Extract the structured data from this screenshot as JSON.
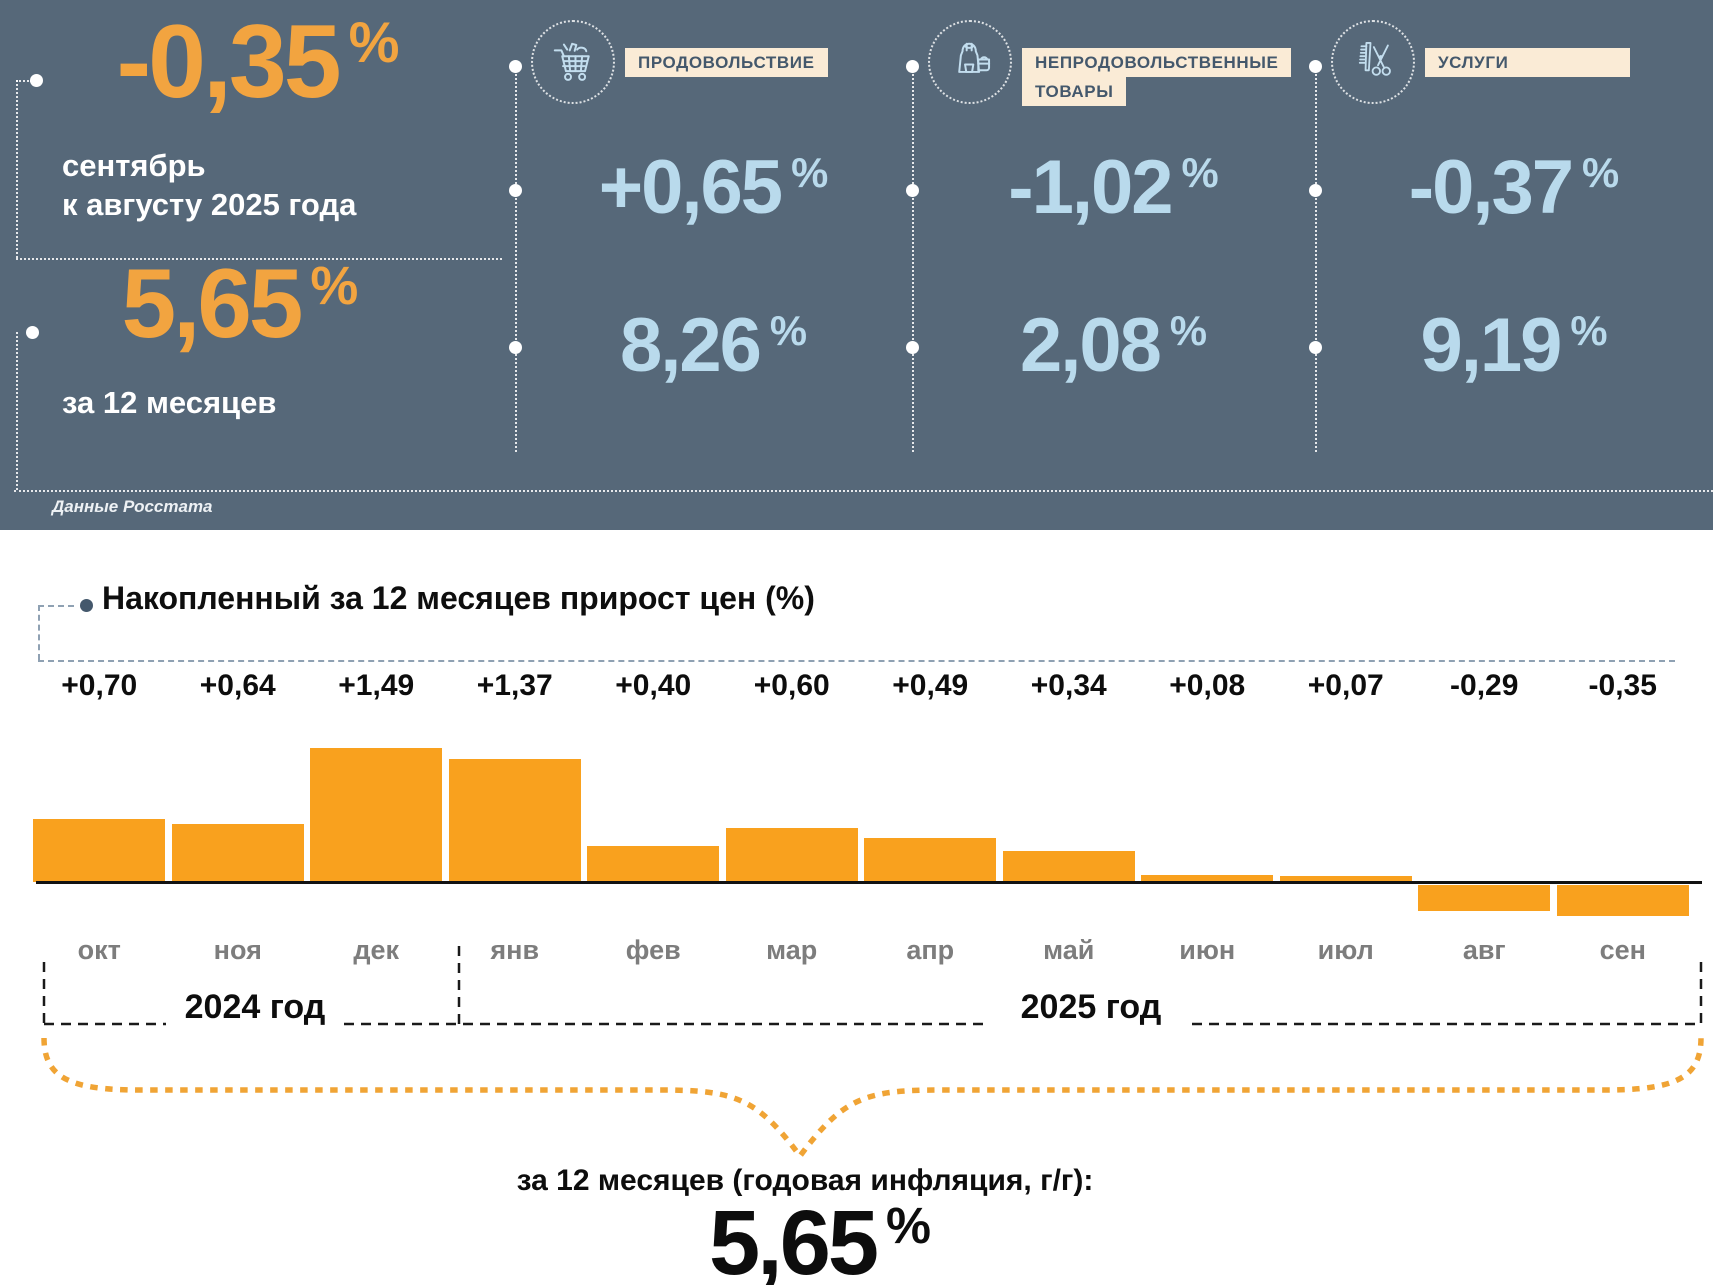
{
  "hero": {
    "mom": {
      "value": "-0,35",
      "unit": "%",
      "caption": [
        "сентябрь",
        "к августу 2025 года"
      ]
    },
    "yoy": {
      "value": "5,65",
      "unit": "%",
      "caption": [
        "за 12 месяцев"
      ]
    },
    "source": "Данные Росстата",
    "colors": {
      "background": "#566879",
      "accent_orange": "#F2A440",
      "accent_blue": "#B9DAEC",
      "chip_bg": "#FAEBD6",
      "chip_text": "#44586C"
    },
    "categories": [
      {
        "icon": "grocery-cart-icon",
        "label_lines": [
          "ПРОДОВОЛЬСТВИЕ"
        ],
        "mom": "+0,65",
        "yoy": "8,26",
        "unit": "%"
      },
      {
        "icon": "clothes-bag-icon",
        "label_lines": [
          "НЕПРОДОВОЛЬСТВЕННЫЕ",
          "ТОВАРЫ"
        ],
        "mom": "-1,02",
        "yoy": "2,08",
        "unit": "%"
      },
      {
        "icon": "comb-scissors-icon",
        "label_lines": [
          "УСЛУГИ"
        ],
        "mom": "-0,37",
        "yoy": "9,19",
        "unit": "%"
      }
    ]
  },
  "chart": {
    "title": "Накопленный за 12 месяцев прирост цен (%)",
    "year_left": "2024 год",
    "year_right": "2025 год",
    "footer_caption": "за 12 месяцев (годовая инфляция, г/г):",
    "footer_value": "5,65",
    "footer_unit": "%"
  },
  "chart_data": {
    "type": "bar",
    "title": "Накопленный за 12 месяцев прирост цен (%)",
    "categories": [
      "окт",
      "ноя",
      "дек",
      "янв",
      "фев",
      "мар",
      "апр",
      "май",
      "июн",
      "июл",
      "авг",
      "сен"
    ],
    "values": [
      0.7,
      0.64,
      1.49,
      1.37,
      0.4,
      0.6,
      0.49,
      0.34,
      0.08,
      0.07,
      -0.29,
      -0.35
    ],
    "value_labels": [
      "+0,70",
      "+0,64",
      "+1,49",
      "+1,37",
      "+0,40",
      "+0,60",
      "+0,49",
      "+0,34",
      "+0,08",
      "+0,07",
      "-0,29",
      "-0,35"
    ],
    "bar_color": "#F9A11E",
    "baseline": 0,
    "ylim": [
      -0.5,
      1.6
    ],
    "grid": false,
    "legend": "none",
    "year_groups": [
      {
        "label": "2024 год",
        "months": [
          "окт",
          "ноя",
          "дек"
        ]
      },
      {
        "label": "2025 год",
        "months": [
          "янв",
          "фев",
          "мар",
          "апр",
          "май",
          "июн",
          "июл",
          "авг",
          "сен"
        ]
      }
    ],
    "annotation": {
      "label": "за 12 месяцев (годовая инфляция, г/г):",
      "value": "5,65",
      "unit": "%"
    }
  }
}
